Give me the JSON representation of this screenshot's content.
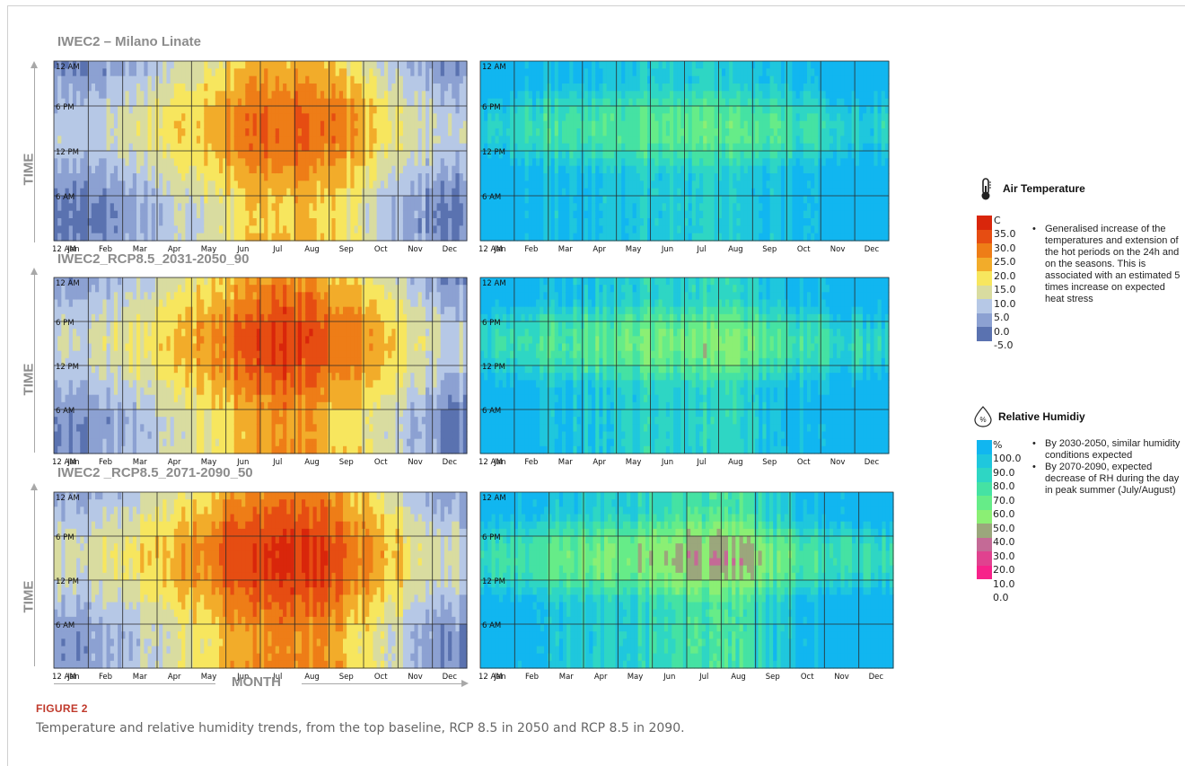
{
  "chart_data": [
    {
      "type": "heatmap",
      "title": "IWEC2 – Milano Linate",
      "ylabel": "TIME",
      "xlabel": "MONTH",
      "variable": "Air Temperature",
      "x_ticks": [
        "Jan",
        "Feb",
        "Mar",
        "Apr",
        "May",
        "Jun",
        "Jul",
        "Aug",
        "Sep",
        "Oct",
        "Nov",
        "Dec"
      ],
      "y_ticks": [
        "12 AM",
        "6 PM",
        "12 PM",
        "6 AM",
        "12 AM"
      ],
      "monthly_base_c": [
        3,
        5,
        9,
        13,
        18,
        23,
        26,
        25,
        20,
        14,
        8,
        3
      ],
      "diurnal_amplitude_c": 5
    },
    {
      "type": "heatmap",
      "title": "IWEC2 – Milano Linate",
      "variable": "Relative Humidity",
      "x_ticks": [
        "Jan",
        "Feb",
        "Mar",
        "Apr",
        "May",
        "Jun",
        "Jul",
        "Aug",
        "Sep",
        "Oct",
        "Nov",
        "Dec"
      ],
      "y_ticks": [
        "12 AM",
        "6 PM",
        "12 PM",
        "6 AM",
        "12 AM"
      ],
      "monthly_base_pct": [
        95,
        88,
        82,
        78,
        76,
        74,
        72,
        73,
        80,
        88,
        93,
        96
      ],
      "diurnal_drop_pct": 25
    },
    {
      "type": "heatmap",
      "title": "IWEC2_RCP8.5_2031-2050_90",
      "ylabel": "TIME",
      "variable": "Air Temperature",
      "x_ticks": [
        "Jan",
        "Feb",
        "Mar",
        "Apr",
        "May",
        "Jun",
        "Jul",
        "Aug",
        "Sep",
        "Oct",
        "Nov",
        "Dec"
      ],
      "y_ticks": [
        "12 AM",
        "6 PM",
        "12 PM",
        "6 AM",
        "12 AM"
      ],
      "monthly_base_c": [
        5,
        7,
        11,
        15,
        21,
        26,
        30,
        29,
        23,
        17,
        10,
        5
      ],
      "diurnal_amplitude_c": 5
    },
    {
      "type": "heatmap",
      "title": "IWEC2_RCP8.5_2031-2050_90",
      "variable": "Relative Humidity",
      "x_ticks": [
        "Jan",
        "Feb",
        "Mar",
        "Apr",
        "May",
        "Jun",
        "Jul",
        "Aug",
        "Sep",
        "Oct",
        "Nov",
        "Dec"
      ],
      "y_ticks": [
        "12 AM",
        "6 PM",
        "12 PM",
        "6 AM",
        "12 AM"
      ],
      "monthly_base_pct": [
        94,
        87,
        80,
        76,
        73,
        70,
        68,
        69,
        78,
        87,
        92,
        96
      ],
      "diurnal_drop_pct": 27
    },
    {
      "type": "heatmap",
      "title": "IWEC2 _RCP8.5_2071-2090_50",
      "ylabel": "TIME",
      "variable": "Air Temperature",
      "x_ticks": [
        "Jan",
        "Feb",
        "Mar",
        "Apr",
        "May",
        "Jun",
        "Jul",
        "Aug",
        "Sep",
        "Oct",
        "Nov",
        "Dec"
      ],
      "y_ticks": [
        "12 AM",
        "6 PM",
        "12 PM",
        "6 AM",
        "12 AM"
      ],
      "monthly_base_c": [
        6,
        9,
        13,
        17,
        23,
        28,
        32,
        31,
        25,
        18,
        11,
        6
      ],
      "diurnal_amplitude_c": 5
    },
    {
      "type": "heatmap",
      "title": "IWEC2 _RCP8.5_2071-2090_50",
      "variable": "Relative Humidity",
      "x_ticks": [
        "Jan",
        "Feb",
        "Mar",
        "Apr",
        "May",
        "Jun",
        "Jul",
        "Aug",
        "Sep",
        "Oct",
        "Nov",
        "Dec"
      ],
      "y_ticks": [
        "12 AM",
        "6 PM",
        "12 PM",
        "6 AM",
        "12 AM"
      ],
      "monthly_base_pct": [
        93,
        85,
        78,
        72,
        68,
        63,
        58,
        57,
        74,
        86,
        91,
        95
      ],
      "diurnal_drop_pct": 30
    }
  ],
  "rows": [
    {
      "title": "IWEC2 – Milano Linate",
      "time_label": "TIME"
    },
    {
      "title": "IWEC2_RCP8.5_2031-2050_90",
      "time_label": "TIME"
    },
    {
      "title": "IWEC2 _RCP8.5_2071-2090_50",
      "time_label": "TIME"
    }
  ],
  "month_axis_label": "MONTH",
  "legend": {
    "temperature": {
      "icon": "thermometer-icon",
      "title": "Air Temperature",
      "unit": "C",
      "ticks": [
        "35.0",
        "30.0",
        "25.0",
        "20.0",
        "15.0",
        "10.0",
        "5.0",
        "0.0",
        "-5.0"
      ],
      "colors": [
        "#d9260b",
        "#e64d12",
        "#ee7d17",
        "#f2ac2a",
        "#f7e65e",
        "#d9dca0",
        "#b6c8e6",
        "#8ca1d2",
        "#5a72b0"
      ],
      "notes": [
        "Generalised increase of the temperatures and extension of the hot periods on the 24h and on the seasons. This is associated with an estimated 5 times increase on expected heat stress"
      ]
    },
    "humidity": {
      "icon": "droplet-percent-icon",
      "icon_text": "%",
      "title": "Relative Humidiy",
      "unit": "%",
      "ticks": [
        "100.0",
        "90.0",
        "80.0",
        "70.0",
        "60.0",
        "50.0",
        "40.0",
        "30.0",
        "20.0",
        "10.0",
        "0.0"
      ],
      "colors": [
        "#11b6f0",
        "#1fc7dd",
        "#2ed6c4",
        "#45e2a3",
        "#66ec88",
        "#8bef74",
        "#9ba77c",
        "#c46a96",
        "#e0428f",
        "#f7228a"
      ],
      "notes": [
        "By 2030-2050, similar humidity conditions expected",
        "By 2070-2090, expected decrease of RH during the day in peak summer (July/August)"
      ]
    }
  },
  "figure": {
    "label": "FIGURE 2",
    "caption": "Temperature and relative humidity trends, from the top baseline, RCP 8.5 in 2050 and RCP 8.5 in 2090."
  }
}
